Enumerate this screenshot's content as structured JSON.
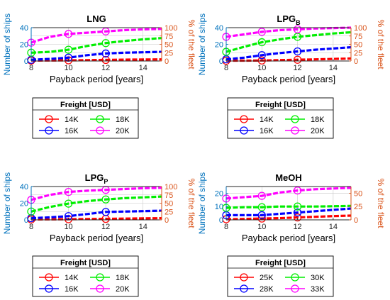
{
  "colors": {
    "left_axis": "#0072BD",
    "right_axis": "#D95319",
    "series": [
      "#FF0000",
      "#0000FF",
      "#00EE00",
      "#FF00FF"
    ],
    "grid": "#c8c8c8"
  },
  "icons": {
    "legend_marker": "open-circle-on-line"
  },
  "chart_data": [
    {
      "type": "line",
      "title": "LNG",
      "title_sub": "",
      "xlabel": "Payback period [years]",
      "ylabel": "Number of ships",
      "ylabel_right": "% of the fleet",
      "xlim": [
        8,
        15
      ],
      "xticks": [
        "8",
        "10",
        "12",
        "14"
      ],
      "ylim": [
        0,
        40
      ],
      "yticks": [
        "0",
        "20",
        "40"
      ],
      "ylim_right": [
        0,
        100
      ],
      "yticks_right": [
        "0",
        "25",
        "50",
        "75",
        "100"
      ],
      "grid": true,
      "legend_title": "Freight [USD]",
      "x": [
        8,
        9,
        10,
        11,
        12,
        13,
        14,
        15
      ],
      "markers_at": [
        8,
        10,
        12
      ],
      "series": [
        {
          "name": "14K",
          "values": [
            0.5,
            0.6,
            0.8,
            1.0,
            1.3,
            1.6,
            1.8,
            2.0
          ]
        },
        {
          "name": "16K",
          "values": [
            1.5,
            2.5,
            4.0,
            7.0,
            9.0,
            10.0,
            10.5,
            11.0
          ]
        },
        {
          "name": "18K",
          "values": [
            10.0,
            11.0,
            13.5,
            18.0,
            21.5,
            24.0,
            26.0,
            27.5
          ]
        },
        {
          "name": "20K",
          "values": [
            22.0,
            29.0,
            32.5,
            34.0,
            35.5,
            37.0,
            38.0,
            38.5
          ]
        }
      ]
    },
    {
      "type": "line",
      "title": "LPG",
      "title_sub": "B",
      "xlabel": "Payback period [years]",
      "ylabel": "Number of ships",
      "ylabel_right": "% of the fleet",
      "xlim": [
        8,
        15
      ],
      "xticks": [
        "8",
        "10",
        "12",
        "14"
      ],
      "ylim": [
        0,
        40
      ],
      "yticks": [
        "0",
        "20",
        "40"
      ],
      "ylim_right": [
        0,
        100
      ],
      "yticks_right": [
        "0",
        "25",
        "50",
        "75",
        "100"
      ],
      "grid": true,
      "legend_title": "Freight [USD]",
      "x": [
        8,
        9,
        10,
        11,
        12,
        13,
        14,
        15
      ],
      "markers_at": [
        8,
        10,
        12
      ],
      "series": [
        {
          "name": "14K",
          "values": [
            0.3,
            0.4,
            0.6,
            1.0,
            1.5,
            2.0,
            2.5,
            3.0
          ]
        },
        {
          "name": "16K",
          "values": [
            2.0,
            4.0,
            7.0,
            9.5,
            11.5,
            13.5,
            15.0,
            16.5
          ]
        },
        {
          "name": "18K",
          "values": [
            11.0,
            17.0,
            22.5,
            26.0,
            29.0,
            31.0,
            33.0,
            34.5
          ]
        },
        {
          "name": "20K",
          "values": [
            29.0,
            32.0,
            35.0,
            37.0,
            38.0,
            39.0,
            39.5,
            40.0
          ]
        }
      ]
    },
    {
      "type": "line",
      "title": "LPG",
      "title_sub": "P",
      "xlabel": "Payback period [years]",
      "ylabel": "Number of ships",
      "ylabel_right": "% of the fleet",
      "xlim": [
        8,
        15
      ],
      "xticks": [
        "8",
        "10",
        "12",
        "14"
      ],
      "ylim": [
        0,
        40
      ],
      "yticks": [
        "0",
        "20",
        "40"
      ],
      "ylim_right": [
        0,
        100
      ],
      "yticks_right": [
        "0",
        "25",
        "50",
        "75",
        "100"
      ],
      "grid": true,
      "legend_title": "Freight [USD]",
      "x": [
        8,
        9,
        10,
        11,
        12,
        13,
        14,
        15
      ],
      "markers_at": [
        8,
        10,
        12
      ],
      "series": [
        {
          "name": "14K",
          "values": [
            0.5,
            0.6,
            0.8,
            1.0,
            1.2,
            1.5,
            1.8,
            2.0
          ]
        },
        {
          "name": "16K",
          "values": [
            2.0,
            3.0,
            4.5,
            7.0,
            9.5,
            10.0,
            10.5,
            11.0
          ]
        },
        {
          "name": "18K",
          "values": [
            10.0,
            15.5,
            19.5,
            22.5,
            24.5,
            26.0,
            27.0,
            28.0
          ]
        },
        {
          "name": "20K",
          "values": [
            24.0,
            30.0,
            33.5,
            35.0,
            36.0,
            37.0,
            38.0,
            38.5
          ]
        }
      ]
    },
    {
      "type": "line",
      "title": "MeOH",
      "title_sub": "",
      "xlabel": "Payback period [years]",
      "ylabel": "Number of ships",
      "ylabel_right": "% of the fleet",
      "xlim": [
        8,
        15
      ],
      "xticks": [
        "8",
        "10",
        "12",
        "14"
      ],
      "ylim": [
        0,
        25
      ],
      "yticks": [
        "0",
        "10",
        "20"
      ],
      "ylim_right": [
        0,
        62.5
      ],
      "yticks_right": [
        "0",
        "25",
        "50"
      ],
      "grid": true,
      "legend_title": "Freight [USD]",
      "x": [
        8,
        9,
        10,
        11,
        12,
        13,
        14,
        15
      ],
      "markers_at": [
        8,
        10,
        12
      ],
      "series": [
        {
          "name": "25K",
          "values": [
            0.5,
            0.7,
            1.0,
            1.3,
            1.8,
            2.3,
            2.8,
            3.2
          ]
        },
        {
          "name": "28K",
          "values": [
            3.5,
            3.5,
            3.5,
            4.5,
            5.5,
            6.5,
            7.5,
            8.5
          ]
        },
        {
          "name": "30K",
          "values": [
            9.0,
            9.5,
            9.5,
            10.0,
            10.0,
            10.0,
            10.2,
            10.5
          ]
        },
        {
          "name": "33K",
          "values": [
            16.0,
            17.0,
            18.0,
            20.5,
            22.0,
            23.0,
            23.5,
            24.0
          ]
        }
      ]
    }
  ]
}
